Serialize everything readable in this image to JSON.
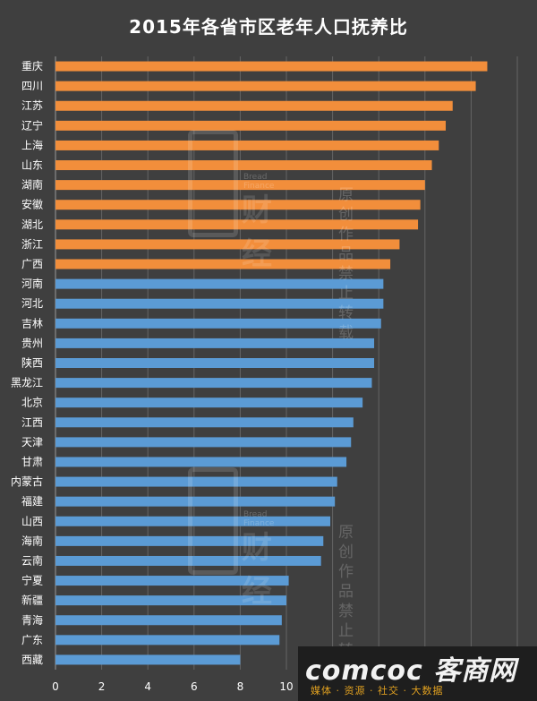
{
  "colors": {
    "background": "#3f3f3f",
    "orange_bar": "#f28e3b",
    "blue_bar": "#5b9bd5",
    "text": "#ffffff",
    "grid": "#8a8a8a"
  },
  "chart_data": {
    "type": "bar",
    "orientation": "horizontal",
    "title": "2015年各省市区老年人口抚养比",
    "xlabel": "",
    "ylabel": "",
    "xlim": [
      0,
      20
    ],
    "xticks": [
      0,
      2,
      4,
      6,
      8,
      10
    ],
    "grid": true,
    "legend": "none",
    "categories": [
      "重庆",
      "四川",
      "江苏",
      "辽宁",
      "上海",
      "山东",
      "湖南",
      "安徽",
      "湖北",
      "浙江",
      "广西",
      "河南",
      "河北",
      "吉林",
      "贵州",
      "陕西",
      "黑龙江",
      "北京",
      "江西",
      "天津",
      "甘肃",
      "内蒙古",
      "福建",
      "山西",
      "海南",
      "云南",
      "宁夏",
      "新疆",
      "青海",
      "广东",
      "西藏"
    ],
    "values": [
      18.7,
      18.2,
      17.2,
      16.9,
      16.6,
      16.3,
      16.0,
      15.8,
      15.7,
      14.9,
      14.5,
      14.2,
      14.2,
      14.1,
      13.8,
      13.8,
      13.7,
      13.3,
      12.9,
      12.8,
      12.6,
      12.2,
      12.1,
      11.9,
      11.6,
      11.5,
      10.1,
      10.0,
      9.8,
      9.7,
      8.0
    ],
    "highlight_count": 11
  },
  "watermark": {
    "brand": "财经",
    "sub": "Bread Finance",
    "note": "原创作品\n禁止转载"
  },
  "corner_logo": {
    "brand": "comcoc 客商网",
    "slogan": "媒体 · 资源 · 社交 · 大数据"
  }
}
